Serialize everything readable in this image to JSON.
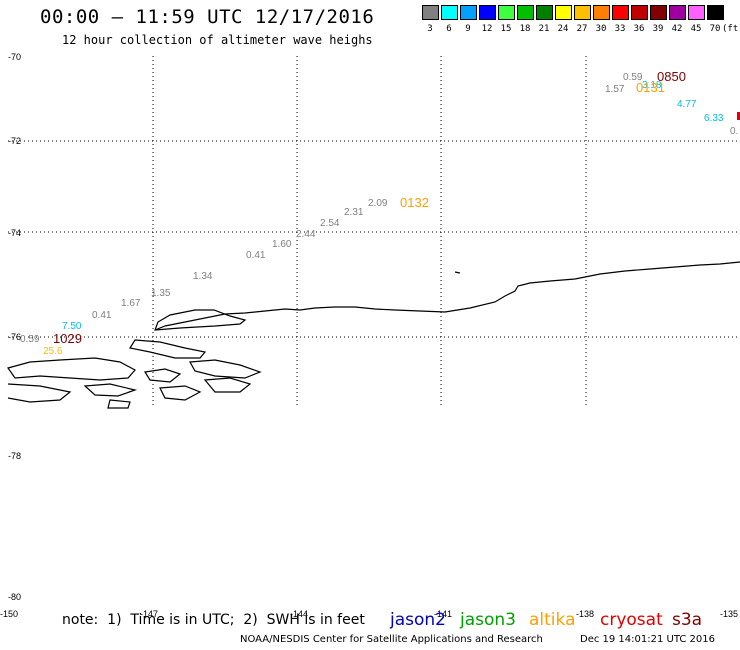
{
  "header": {
    "title": "00:00 – 11:59 UTC 12/17/2016",
    "subtitle": "12 hour collection of altimeter wave heighs"
  },
  "legend": {
    "items": [
      {
        "label": "3",
        "color": "#808080"
      },
      {
        "label": "6",
        "color": "#00ffff"
      },
      {
        "label": "9",
        "color": "#00a0ff"
      },
      {
        "label": "12",
        "color": "#0000ff"
      },
      {
        "label": "15",
        "color": "#40ff40"
      },
      {
        "label": "18",
        "color": "#00c000"
      },
      {
        "label": "21",
        "color": "#008000"
      },
      {
        "label": "24",
        "color": "#ffff00"
      },
      {
        "label": "27",
        "color": "#ffc000"
      },
      {
        "label": "30",
        "color": "#ff8000"
      },
      {
        "label": "33",
        "color": "#ff0000"
      },
      {
        "label": "36",
        "color": "#c00000"
      },
      {
        "label": "39",
        "color": "#800000"
      },
      {
        "label": "42",
        "color": "#a000a0"
      },
      {
        "label": "45",
        "color": "#ff60ff"
      },
      {
        "label": "70",
        "color": "#000000"
      }
    ],
    "unit": "(ft)"
  },
  "axes": {
    "lat_labels": [
      "-70",
      "-72",
      "-74",
      "-76",
      "-78",
      "-80"
    ],
    "lon_labels": [
      "-150",
      "-147",
      "-144",
      "-141",
      "-138",
      "-135"
    ]
  },
  "observations": [
    {
      "text": "0.59",
      "color": "#808080"
    },
    {
      "text": "0850",
      "color": "#800000"
    },
    {
      "text": "1.57",
      "color": "#808080"
    },
    {
      "text": "3.18",
      "color": "#00c0e0"
    },
    {
      "text": "0131",
      "color": "#ffa000"
    },
    {
      "text": "4.77",
      "color": "#00c0e0"
    },
    {
      "text": "6.33",
      "color": "#00c0e0"
    },
    {
      "text": "0.",
      "color": "#808080"
    },
    {
      "text": "2.09",
      "color": "#808080"
    },
    {
      "text": "0132",
      "color": "#ffa000"
    },
    {
      "text": "2.31",
      "color": "#808080"
    },
    {
      "text": "2.54",
      "color": "#808080"
    },
    {
      "text": "2.44",
      "color": "#808080"
    },
    {
      "text": "1.60",
      "color": "#808080"
    },
    {
      "text": "0.41",
      "color": "#808080"
    },
    {
      "text": "1.34",
      "color": "#808080"
    },
    {
      "text": "1.35",
      "color": "#808080"
    },
    {
      "text": "1.67",
      "color": "#808080"
    },
    {
      "text": "0.41",
      "color": "#808080"
    },
    {
      "text": "7.50",
      "color": "#00c0e0"
    },
    {
      "text": "0.59",
      "color": "#808080"
    },
    {
      "text": "1029",
      "color": "#800000"
    },
    {
      "text": "25.6",
      "color": "#ffc000"
    }
  ],
  "footer": {
    "note": "note:  1)  Time is in UTC;  2)  SWH is in feet",
    "satellites": [
      {
        "name": "jason2",
        "color": "#0000c0"
      },
      {
        "name": "jason3",
        "color": "#00a000"
      },
      {
        "name": "altika",
        "color": "#ffa000"
      },
      {
        "name": "cryosat",
        "color": "#e00000"
      },
      {
        "name": "s3a",
        "color": "#800000"
      }
    ],
    "credit": "NOAA/NESDIS Center for Satellite Applications and Research",
    "timestamp": "Dec 19 14:01:21 UTC 2016"
  }
}
